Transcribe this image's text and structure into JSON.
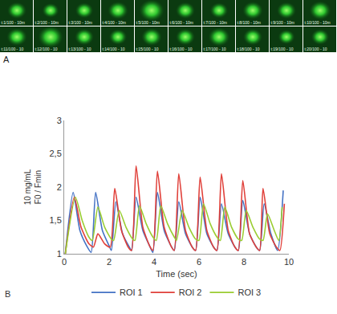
{
  "image_strip": {
    "label": "A",
    "frames": [
      "t:1/100 - 10m",
      "t:2/100 - 10m",
      "t:3/100 - 10m",
      "t:4/100 - 10m",
      "t:5/100 - 10m",
      "t:6/100 - 10m",
      "t:7/100 - 10m",
      "t:8/100 - 10m",
      "t:9/100 - 10m",
      "t:10/100 - 10m",
      "t:11/100 - 10",
      "t:12/100 - 10",
      "t:13/100 - 10",
      "t:14/100 - 10",
      "t:15/100 - 10",
      "t:16/100 - 10",
      "t:17/100 - 10",
      "t:18/100 - 10",
      "t:19/100 - 10",
      "t:20/100 - 10"
    ]
  },
  "chart_data": {
    "type": "line",
    "label": "B",
    "xlabel": "Time (sec)",
    "ylabel": "10 mg/mL\nF0 / Fmin",
    "xlim": [
      0,
      10
    ],
    "xticks": [
      0,
      2,
      4,
      6,
      8,
      10
    ],
    "ylim": [
      1,
      3
    ],
    "yticks": [
      1,
      {
        "value": 1.5,
        "label": "1,5"
      },
      2,
      {
        "value": 2.5,
        "label": "2,5"
      },
      3
    ],
    "grid": false,
    "legend": "bottom",
    "series": [
      {
        "name": "ROI 1",
        "color": "#4472c4",
        "x": [
          0.05,
          0.4,
          0.7,
          1.0,
          1.2,
          1.4,
          1.7,
          2.0,
          2.1,
          2.3,
          2.6,
          2.9,
          3.0,
          3.2,
          3.5,
          3.8,
          3.95,
          4.15,
          4.45,
          4.75,
          4.9,
          5.1,
          5.4,
          5.7,
          5.85,
          6.05,
          6.35,
          6.65,
          6.8,
          7.0,
          7.3,
          7.6,
          7.75,
          7.95,
          8.25,
          8.55,
          8.7,
          8.9,
          9.2,
          9.5,
          9.75
        ],
        "values": [
          1.0,
          1.92,
          1.35,
          1.12,
          1.02,
          1.92,
          1.35,
          1.12,
          1.05,
          1.78,
          1.3,
          1.1,
          1.05,
          1.85,
          1.35,
          1.12,
          1.02,
          1.92,
          1.35,
          1.12,
          1.05,
          1.78,
          1.3,
          1.1,
          1.05,
          1.85,
          1.3,
          1.1,
          1.05,
          1.75,
          1.3,
          1.1,
          1.05,
          1.8,
          1.3,
          1.1,
          1.05,
          1.75,
          1.3,
          1.05,
          1.95
        ]
      },
      {
        "name": "ROI 2",
        "color": "#e0403a",
        "x": [
          0.05,
          0.45,
          0.75,
          1.1,
          1.3,
          1.5,
          1.8,
          2.05,
          2.25,
          2.55,
          2.85,
          3.0,
          3.2,
          3.5,
          3.8,
          3.95,
          4.15,
          4.45,
          4.75,
          4.9,
          5.1,
          5.4,
          5.7,
          5.85,
          6.05,
          6.35,
          6.65,
          6.8,
          7.0,
          7.3,
          7.6,
          7.75,
          7.95,
          8.25,
          8.55,
          8.7,
          8.85,
          9.15,
          9.45,
          9.6,
          9.8
        ],
        "values": [
          1.0,
          1.85,
          1.4,
          1.15,
          1.1,
          1.3,
          1.15,
          1.1,
          1.98,
          1.35,
          1.1,
          1.05,
          2.32,
          1.4,
          1.12,
          1.05,
          2.24,
          1.4,
          1.12,
          1.05,
          2.2,
          1.35,
          1.1,
          1.05,
          2.15,
          1.35,
          1.1,
          1.05,
          2.2,
          1.35,
          1.1,
          1.05,
          2.1,
          1.3,
          1.1,
          1.05,
          1.98,
          1.3,
          1.1,
          1.05,
          1.75
        ]
      },
      {
        "name": "ROI 3",
        "color": "#9acd32",
        "x": [
          0.05,
          0.5,
          0.8,
          1.1,
          1.25,
          1.5,
          1.8,
          2.1,
          2.2,
          2.45,
          2.75,
          3.05,
          3.15,
          3.35,
          3.65,
          3.95,
          4.1,
          4.3,
          4.6,
          4.9,
          5.0,
          5.25,
          5.55,
          5.85,
          6.0,
          6.2,
          6.5,
          6.8,
          6.95,
          7.15,
          7.45,
          7.75,
          7.9,
          8.1,
          8.4,
          8.7,
          8.85,
          9.05,
          9.35,
          9.55,
          9.7
        ],
        "values": [
          1.0,
          1.85,
          1.5,
          1.25,
          1.2,
          1.7,
          1.4,
          1.22,
          1.2,
          1.65,
          1.4,
          1.22,
          1.2,
          1.72,
          1.45,
          1.25,
          1.2,
          1.72,
          1.45,
          1.25,
          1.2,
          1.65,
          1.4,
          1.22,
          1.2,
          1.75,
          1.45,
          1.25,
          1.2,
          1.7,
          1.4,
          1.22,
          1.2,
          1.65,
          1.4,
          1.22,
          1.2,
          1.6,
          1.35,
          1.2,
          1.7
        ]
      }
    ]
  }
}
